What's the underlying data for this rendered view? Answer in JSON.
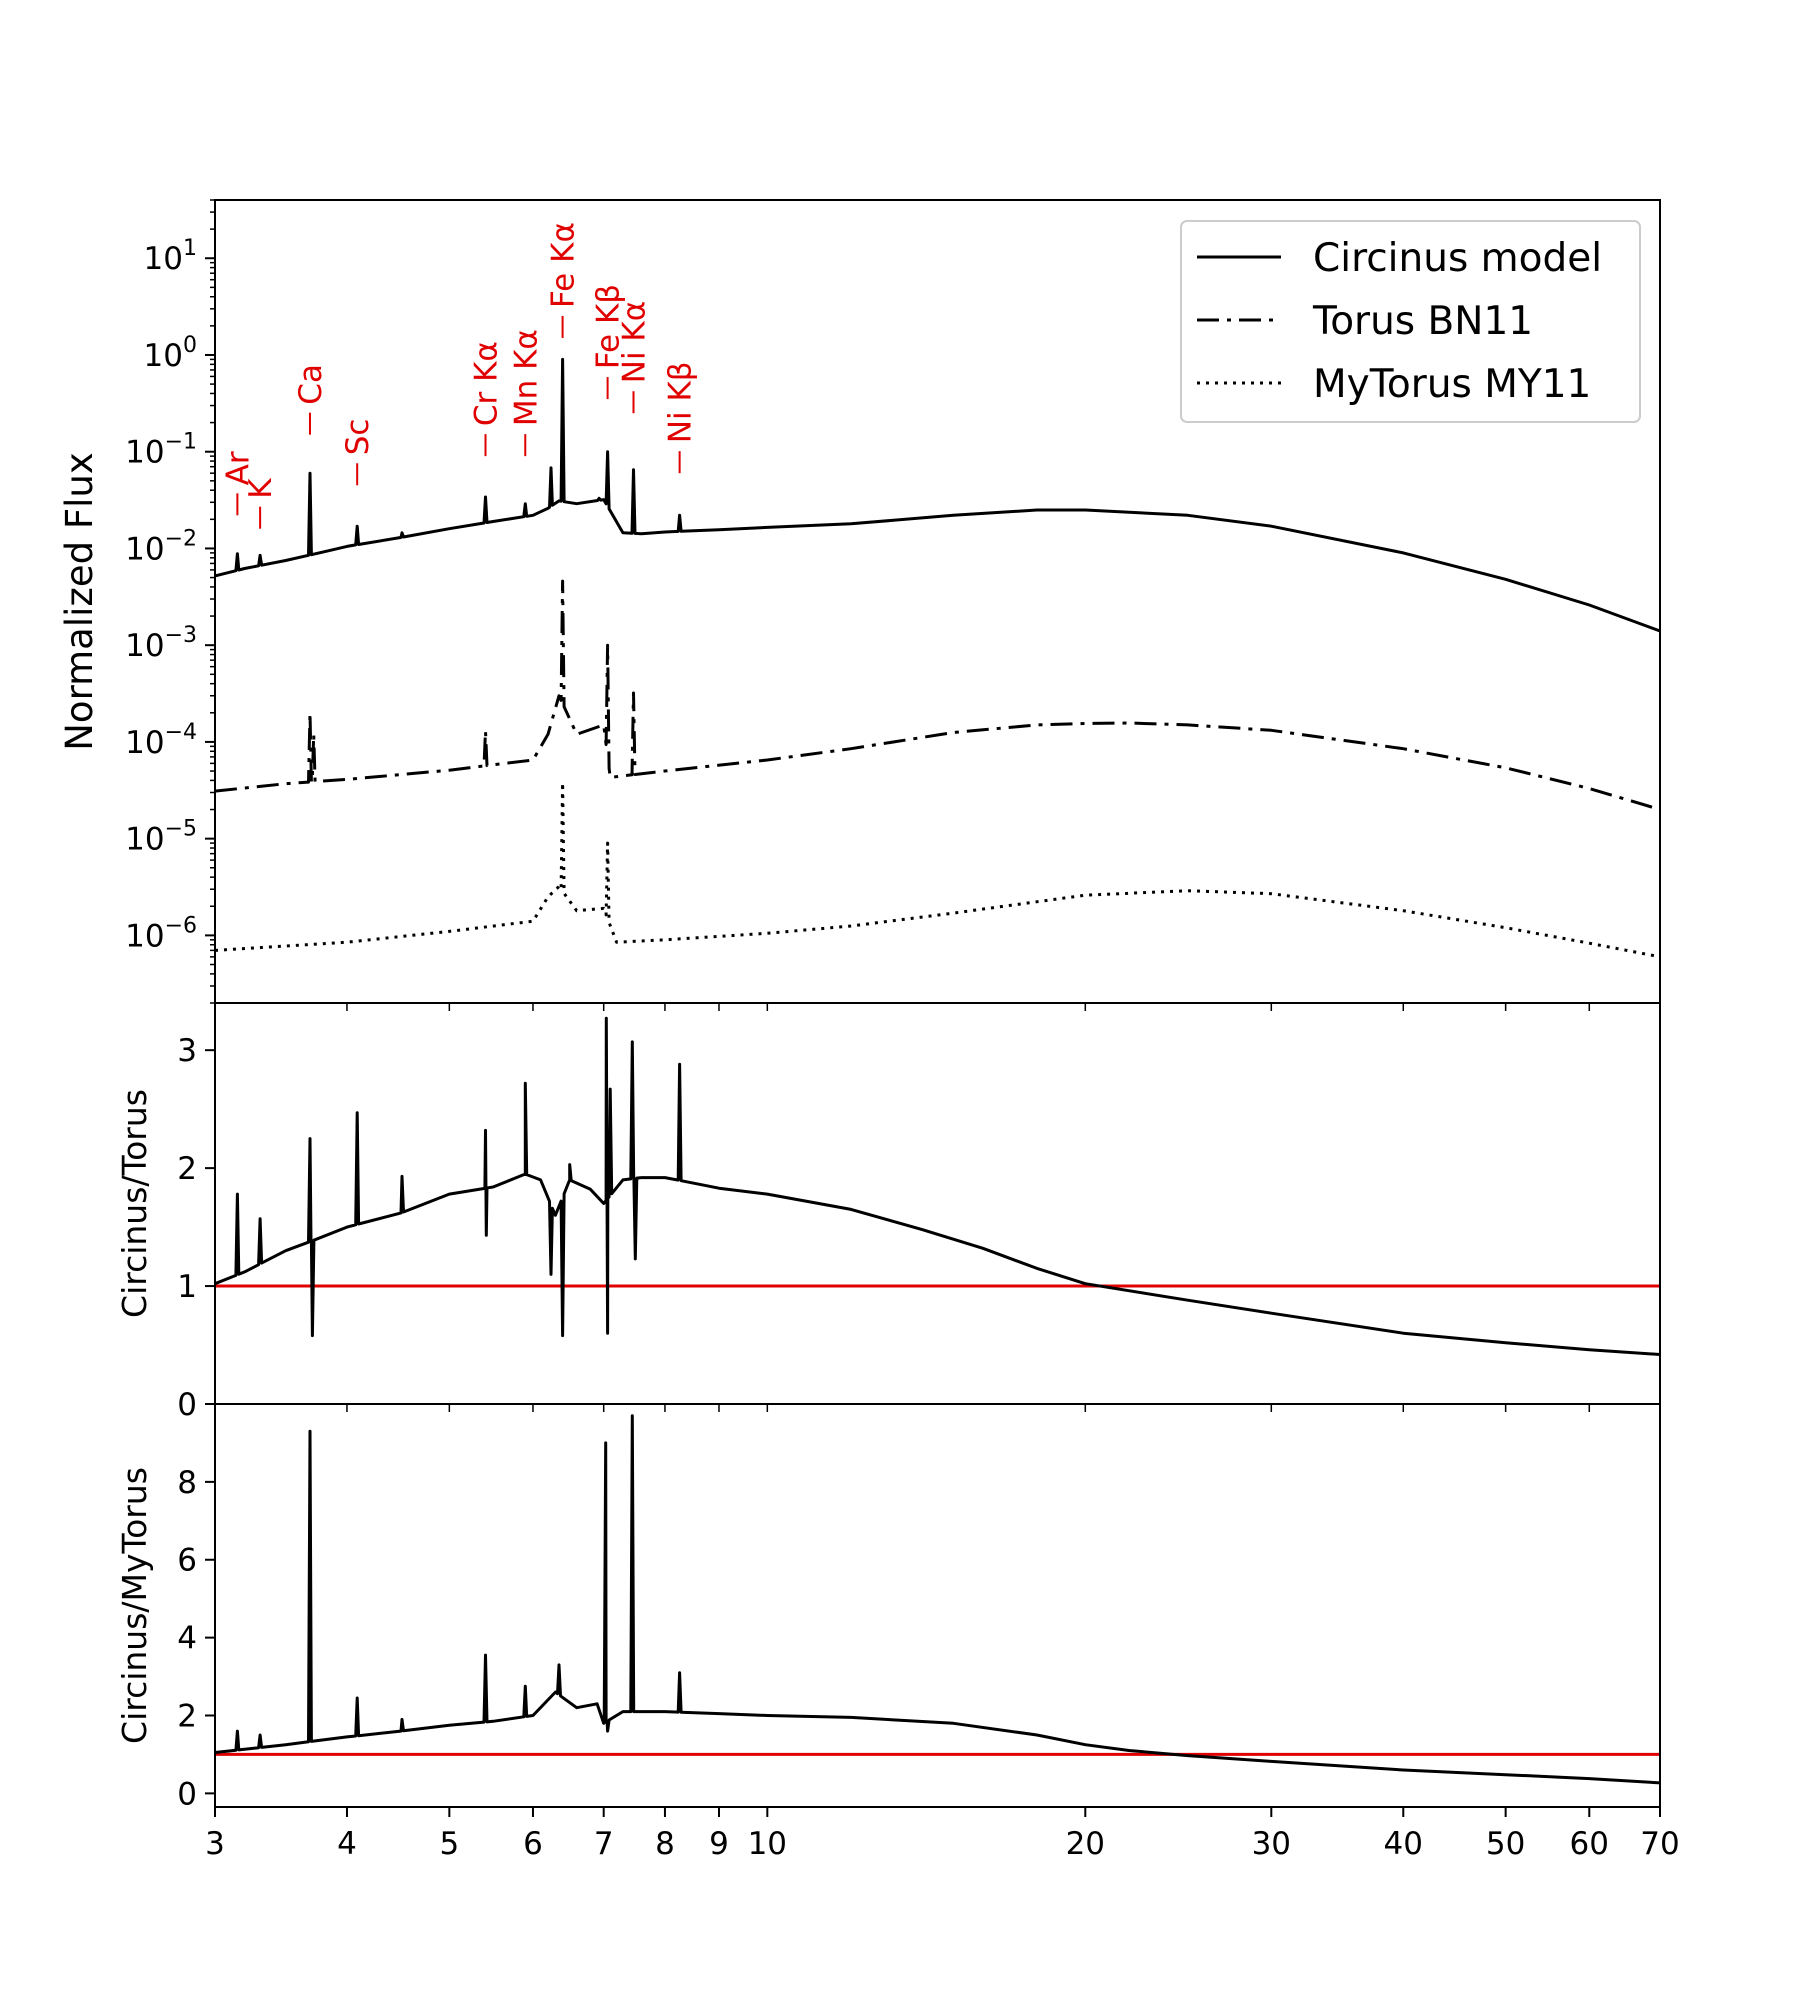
{
  "chart_data": [
    {
      "panel": "top",
      "type": "line",
      "xscale": "log",
      "yscale": "log",
      "xlim": [
        3,
        70
      ],
      "ylim": [
        2e-07,
        40
      ],
      "ylabel": "Normalized Flux",
      "y_ticks": [
        {
          "value": 1e-06,
          "base": "10",
          "exp": "−6"
        },
        {
          "value": 1e-05,
          "base": "10",
          "exp": "−5"
        },
        {
          "value": 0.0001,
          "base": "10",
          "exp": "−4"
        },
        {
          "value": 0.001,
          "base": "10",
          "exp": "−3"
        },
        {
          "value": 0.01,
          "base": "10",
          "exp": "−2"
        },
        {
          "value": 0.1,
          "base": "10",
          "exp": "−1"
        },
        {
          "value": 1,
          "base": "10",
          "exp": "0"
        },
        {
          "value": 10,
          "base": "10",
          "exp": "1"
        }
      ],
      "legend": {
        "placement": "top-right"
      },
      "series": [
        {
          "name": "Circinus model",
          "style": "solid",
          "x": [
            3,
            3.2,
            3.5,
            3.8,
            4,
            4.5,
            5,
            5.5,
            6,
            6.2,
            6.35,
            6.6,
            7,
            7.3,
            7.6,
            8,
            9,
            10,
            12,
            15,
            18,
            20,
            25,
            30,
            40,
            50,
            60,
            70
          ],
          "y": [
            0.0052,
            0.0062,
            0.0075,
            0.0092,
            0.0105,
            0.013,
            0.016,
            0.019,
            0.022,
            0.026,
            0.031,
            0.029,
            0.032,
            0.0145,
            0.0142,
            0.0148,
            0.0156,
            0.0165,
            0.018,
            0.022,
            0.025,
            0.025,
            0.022,
            0.017,
            0.009,
            0.0048,
            0.0026,
            0.0014
          ],
          "peaks": [
            {
              "x": 3.15,
              "y": 0.0088
            },
            {
              "x": 3.31,
              "y": 0.0085
            },
            {
              "x": 3.69,
              "y": 0.06
            },
            {
              "x": 4.09,
              "y": 0.017
            },
            {
              "x": 4.51,
              "y": 0.0145
            },
            {
              "x": 5.41,
              "y": 0.034
            },
            {
              "x": 5.9,
              "y": 0.029
            },
            {
              "x": 6.24,
              "y": 0.068
            },
            {
              "x": 6.4,
              "y": 0.9
            },
            {
              "x": 6.93,
              "y": 0.033
            },
            {
              "x": 7.06,
              "y": 0.1
            },
            {
              "x": 7.47,
              "y": 0.065
            },
            {
              "x": 8.26,
              "y": 0.022
            }
          ]
        },
        {
          "name": "Torus BN11",
          "style": "dashdot",
          "x": [
            3,
            3.5,
            4,
            5,
            5.5,
            6,
            6.2,
            6.35,
            6.6,
            7,
            7.1,
            8,
            10,
            12,
            15,
            18,
            20,
            22,
            25,
            30,
            40,
            50,
            60,
            70
          ],
          "y": [
            3.1e-05,
            3.7e-05,
            4.1e-05,
            5.1e-05,
            5.8e-05,
            6.5e-05,
            0.00012,
            0.0003,
            0.00012,
            0.00015,
            4.3e-05,
            5e-05,
            6.5e-05,
            8.5e-05,
            0.000125,
            0.00015,
            0.000155,
            0.000157,
            0.00015,
            0.000132,
            8.5e-05,
            5.4e-05,
            3.3e-05,
            2e-05
          ],
          "peaks": [
            {
              "x": 3.69,
              "y": 0.0002
            },
            {
              "x": 3.72,
              "y": 0.00012
            },
            {
              "x": 5.41,
              "y": 0.00013
            },
            {
              "x": 6.4,
              "y": 0.0046
            },
            {
              "x": 7.06,
              "y": 0.001
            },
            {
              "x": 7.47,
              "y": 0.00032
            }
          ]
        },
        {
          "name": "MyTorus MY11",
          "style": "dotted",
          "x": [
            3,
            4,
            5,
            6,
            6.2,
            6.35,
            6.6,
            7,
            7.2,
            8,
            10,
            12,
            15,
            20,
            25,
            30,
            40,
            50,
            60,
            70
          ],
          "y": [
            7e-07,
            8.5e-07,
            1.1e-06,
            1.4e-06,
            2.5e-06,
            3.2e-06,
            1.8e-06,
            1.9e-06,
            8.5e-07,
            9e-07,
            1.05e-06,
            1.25e-06,
            1.7e-06,
            2.6e-06,
            2.9e-06,
            2.7e-06,
            1.8e-06,
            1.2e-06,
            8.3e-07,
            6e-07
          ],
          "peaks": [
            {
              "x": 6.4,
              "y": 3.8e-05
            },
            {
              "x": 7.06,
              "y": 9e-06
            }
          ]
        }
      ],
      "annotations": [
        {
          "text": "Ar",
          "x": 3.15,
          "y": 0.022
        },
        {
          "text": "K",
          "x": 3.31,
          "y": 0.016
        },
        {
          "text": "Ca",
          "x": 3.69,
          "y": 0.15
        },
        {
          "text": "Sc",
          "x": 4.09,
          "y": 0.045
        },
        {
          "text": "Cr Kα",
          "x": 5.41,
          "y": 0.09
        },
        {
          "text": "Mn Kα",
          "x": 5.9,
          "y": 0.09
        },
        {
          "text": "Fe Kα",
          "x": 6.4,
          "y": 1.5
        },
        {
          "text": "Fe Kβ",
          "x": 7.06,
          "y": 0.35
        },
        {
          "text": "Ni Kα",
          "x": 7.47,
          "y": 0.25
        },
        {
          "text": "Ni Kβ",
          "x": 8.26,
          "y": 0.06
        }
      ]
    },
    {
      "panel": "middle",
      "type": "line",
      "xscale": "log",
      "yscale": "linear",
      "xlim": [
        3,
        70
      ],
      "ylim": [
        0,
        3.4
      ],
      "ylabel": "Circinus/Torus",
      "y_ticks": [
        0,
        1,
        2,
        3
      ],
      "reference_line": {
        "y": 1,
        "color": "#e00000"
      },
      "series": [
        {
          "name": "",
          "x": [
            3,
            3.2,
            3.5,
            3.7,
            4,
            4.5,
            5,
            5.5,
            5.9,
            6.1,
            6.3,
            6.5,
            6.8,
            7,
            7.3,
            7.6,
            8,
            9,
            10,
            12,
            14,
            16,
            18,
            20,
            25,
            30,
            40,
            50,
            60,
            70
          ],
          "y": [
            1.02,
            1.12,
            1.3,
            1.38,
            1.5,
            1.62,
            1.78,
            1.84,
            1.95,
            1.9,
            1.6,
            1.9,
            1.82,
            1.7,
            1.9,
            1.92,
            1.92,
            1.83,
            1.78,
            1.65,
            1.48,
            1.32,
            1.15,
            1.02,
            0.88,
            0.77,
            0.6,
            0.52,
            0.46,
            0.42
          ],
          "peaks": [
            {
              "x": 3.15,
              "y": 1.78
            },
            {
              "x": 3.31,
              "y": 1.57
            },
            {
              "x": 3.69,
              "y": 2.25
            },
            {
              "x": 3.71,
              "y": 0.58
            },
            {
              "x": 4.09,
              "y": 2.47
            },
            {
              "x": 4.51,
              "y": 1.93
            },
            {
              "x": 5.41,
              "y": 2.32
            },
            {
              "x": 5.42,
              "y": 1.43
            },
            {
              "x": 5.9,
              "y": 2.72
            },
            {
              "x": 6.24,
              "y": 1.1
            },
            {
              "x": 6.4,
              "y": 0.58
            },
            {
              "x": 6.5,
              "y": 2.03
            },
            {
              "x": 7.04,
              "y": 3.27
            },
            {
              "x": 7.06,
              "y": 0.6
            },
            {
              "x": 7.1,
              "y": 2.67
            },
            {
              "x": 7.45,
              "y": 3.07
            },
            {
              "x": 7.5,
              "y": 1.23
            },
            {
              "x": 8.26,
              "y": 2.88
            }
          ]
        }
      ]
    },
    {
      "panel": "bottom",
      "type": "line",
      "xscale": "log",
      "yscale": "linear",
      "xlim": [
        3,
        70
      ],
      "ylim": [
        -0.35,
        10.0
      ],
      "ylabel": "Circinus/MyTorus",
      "xlabel": "",
      "y_ticks": [
        0,
        2,
        4,
        6,
        8
      ],
      "x_ticks": [
        3,
        4,
        5,
        6,
        7,
        8,
        9,
        10,
        20,
        30,
        40,
        50,
        60,
        70
      ],
      "reference_line": {
        "y": 1,
        "color": "#e00000"
      },
      "series": [
        {
          "name": "",
          "x": [
            3,
            3.5,
            4,
            4.5,
            5,
            5.5,
            6,
            6.3,
            6.6,
            6.9,
            7,
            7.3,
            8,
            9,
            10,
            12,
            15,
            18,
            20,
            22,
            25,
            30,
            40,
            50,
            60,
            70
          ],
          "y": [
            1.05,
            1.25,
            1.45,
            1.6,
            1.75,
            1.85,
            2.0,
            2.6,
            2.2,
            2.3,
            1.8,
            2.1,
            2.1,
            2.05,
            2.0,
            1.95,
            1.8,
            1.5,
            1.25,
            1.1,
            0.97,
            0.82,
            0.6,
            0.48,
            0.38,
            0.27
          ],
          "peaks": [
            {
              "x": 3.15,
              "y": 1.6
            },
            {
              "x": 3.31,
              "y": 1.5
            },
            {
              "x": 3.69,
              "y": 9.3
            },
            {
              "x": 4.09,
              "y": 2.45
            },
            {
              "x": 4.51,
              "y": 1.9
            },
            {
              "x": 5.41,
              "y": 3.55
            },
            {
              "x": 5.9,
              "y": 2.75
            },
            {
              "x": 6.35,
              "y": 3.3
            },
            {
              "x": 7.03,
              "y": 9.0
            },
            {
              "x": 7.06,
              "y": 1.6
            },
            {
              "x": 7.45,
              "y": 9.7
            },
            {
              "x": 8.26,
              "y": 3.1
            }
          ]
        }
      ]
    }
  ]
}
